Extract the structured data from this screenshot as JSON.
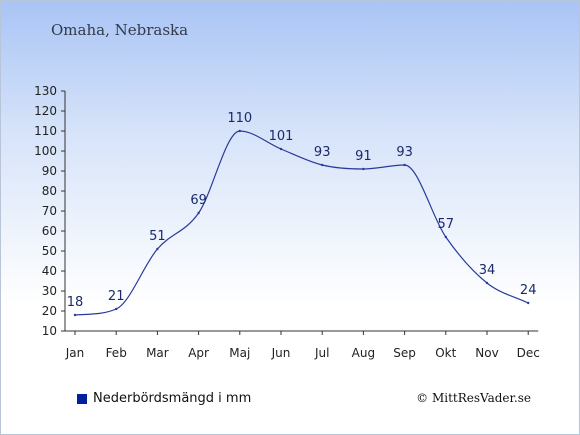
{
  "header": {
    "location": "Omaha, Nebraska"
  },
  "legend": {
    "label": "Nederbördsmängd i mm",
    "color": "#0020a0"
  },
  "footer": {
    "copyright": "© MittResVader.se"
  },
  "colors": {
    "line": "#2a3a9a",
    "axis": "#333333"
  },
  "chart_data": {
    "type": "line",
    "title": "",
    "xlabel": "",
    "ylabel": "",
    "categories": [
      "Jan",
      "Feb",
      "Mar",
      "Apr",
      "Maj",
      "Jun",
      "Jul",
      "Aug",
      "Sep",
      "Okt",
      "Nov",
      "Dec"
    ],
    "series": [
      {
        "name": "Nederbördsmängd i mm",
        "values": [
          18,
          21,
          51,
          69,
          110,
          101,
          93,
          91,
          93,
          57,
          34,
          24
        ]
      }
    ],
    "ylim": [
      10,
      130
    ],
    "yticks": [
      10,
      20,
      30,
      40,
      50,
      60,
      70,
      80,
      90,
      100,
      110,
      120,
      130
    ],
    "grid": false,
    "legend_position": "bottom-left"
  }
}
